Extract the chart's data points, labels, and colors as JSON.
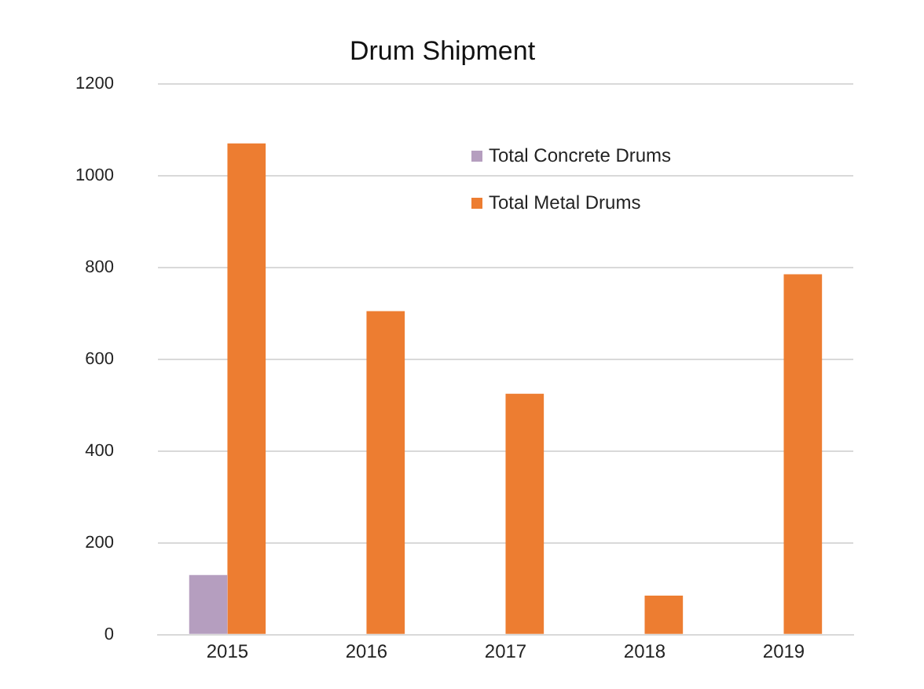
{
  "chart_data": {
    "type": "bar",
    "title": "Drum Shipment",
    "categories": [
      "2015",
      "2016",
      "2017",
      "2018",
      "2019"
    ],
    "series": [
      {
        "name": "Total Concrete Drums",
        "color": "#b59ebf",
        "values": [
          130,
          0,
          0,
          0,
          0
        ]
      },
      {
        "name": "Total Metal Drums",
        "color": "#ed7d31",
        "values": [
          1070,
          705,
          525,
          85,
          785
        ]
      }
    ],
    "ylim": [
      0,
      1200
    ],
    "yticks": [
      0,
      200,
      400,
      600,
      800,
      1000,
      1200
    ],
    "grid": "y",
    "legend": "top"
  }
}
